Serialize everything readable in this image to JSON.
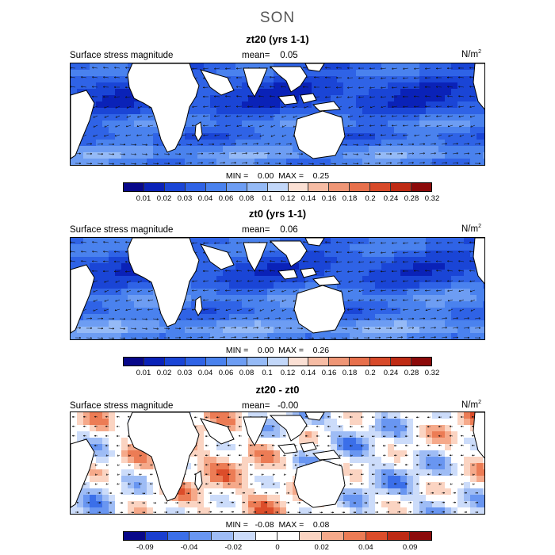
{
  "season": "SON",
  "panels": [
    {
      "title": "zt20 (yrs 1-1)",
      "label": "Surface stress magnitude",
      "mean": "mean=    0.05",
      "units": "N/m",
      "units_exp": "2",
      "minmax": "MIN =    0.00  MAX =    0.25",
      "ticks": [
        "0.01",
        "0.02",
        "0.03",
        "0.04",
        "0.06",
        "0.08",
        "0.1",
        "0.12",
        "0.14",
        "0.16",
        "0.18",
        "0.2",
        "0.24",
        "0.28",
        "0.32"
      ]
    },
    {
      "title": "zt0 (yrs 1-1)",
      "label": "Surface stress magnitude",
      "mean": "mean=    0.06",
      "units": "N/m",
      "units_exp": "2",
      "minmax": "MIN =    0.00  MAX =    0.26",
      "ticks": [
        "0.01",
        "0.02",
        "0.03",
        "0.04",
        "0.06",
        "0.08",
        "0.1",
        "0.12",
        "0.14",
        "0.16",
        "0.18",
        "0.2",
        "0.24",
        "0.28",
        "0.32"
      ]
    },
    {
      "title": "zt20 - zt0",
      "label": "Surface stress magnitude",
      "mean": "mean=   -0.00",
      "units": "N/m",
      "units_exp": "2",
      "minmax": "MIN =   -0.08  MAX =    0.08",
      "ticks": [
        "-0.09",
        "-0.04",
        "-0.02",
        "0",
        "0.02",
        "0.04",
        "0.09"
      ]
    }
  ],
  "colors": {
    "mag_scale": [
      "#08088a",
      "#0a22b8",
      "#1a45d6",
      "#2f63e6",
      "#4a82ee",
      "#6d9df3",
      "#95baf6",
      "#c2d7f9",
      "#fbe0d4",
      "#f6bca4",
      "#ef9676",
      "#e7704c",
      "#d84a2a",
      "#bf2b14",
      "#8c0a0a"
    ],
    "diff_scale": [
      "#08088a",
      "#1a3fcf",
      "#3b6fe9",
      "#6996f1",
      "#9ebcf5",
      "#ccdcfa",
      "#ffffff",
      "#ffffff",
      "#fbd4c2",
      "#f5a98a",
      "#ec7c55",
      "#dc4d2a",
      "#bd2a14",
      "#8c0a0a"
    ],
    "land": "#ffffff",
    "coast": "#000000"
  }
}
